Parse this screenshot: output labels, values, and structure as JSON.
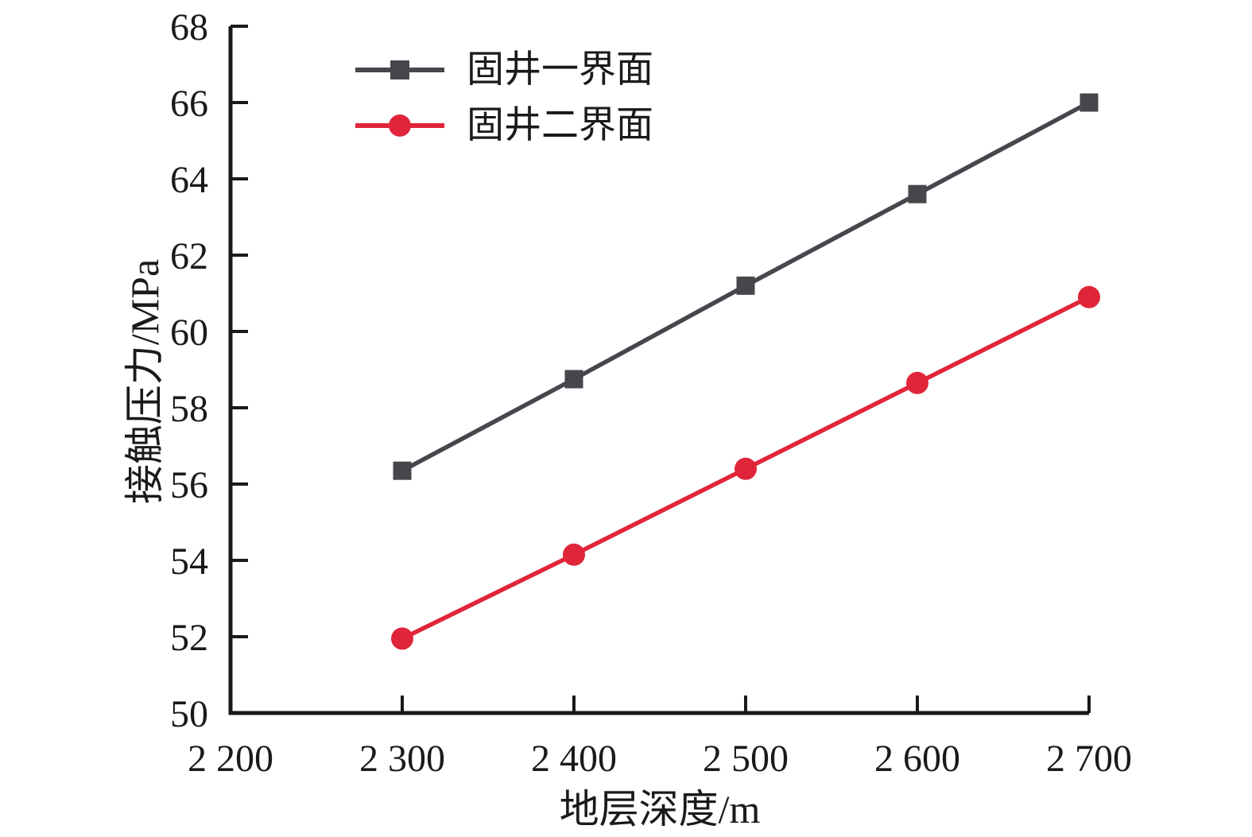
{
  "chart_data": {
    "type": "line",
    "title": "",
    "xlabel": "地层深度/m",
    "ylabel": "接触压力/MPa",
    "xlim": [
      2200,
      2700
    ],
    "ylim": [
      50,
      68
    ],
    "grid": false,
    "legend_position": "upper-left-inside",
    "x_ticks": [
      2200,
      2300,
      2400,
      2500,
      2600,
      2700
    ],
    "x_tick_labels": [
      "2 200",
      "2 300",
      "2 400",
      "2 500",
      "2 600",
      "2 700"
    ],
    "y_ticks": [
      50,
      52,
      54,
      56,
      58,
      60,
      62,
      64,
      66,
      68
    ],
    "y_tick_labels": [
      "50",
      "52",
      "54",
      "56",
      "58",
      "60",
      "62",
      "64",
      "66",
      "68"
    ],
    "x": [
      2300,
      2400,
      2500,
      2600,
      2700
    ],
    "series": [
      {
        "name": "固井一界面",
        "marker": "square",
        "color": "#46474d",
        "values": [
          56.35,
          58.75,
          61.2,
          63.6,
          66.0
        ]
      },
      {
        "name": "固井二界面",
        "marker": "circle",
        "color": "#e0253a",
        "values": [
          51.95,
          54.15,
          56.4,
          58.65,
          60.9
        ]
      }
    ]
  },
  "colors": {
    "axis": "#1a1a1a",
    "tick_label": "#1a1a1a",
    "background": "#ffffff"
  }
}
